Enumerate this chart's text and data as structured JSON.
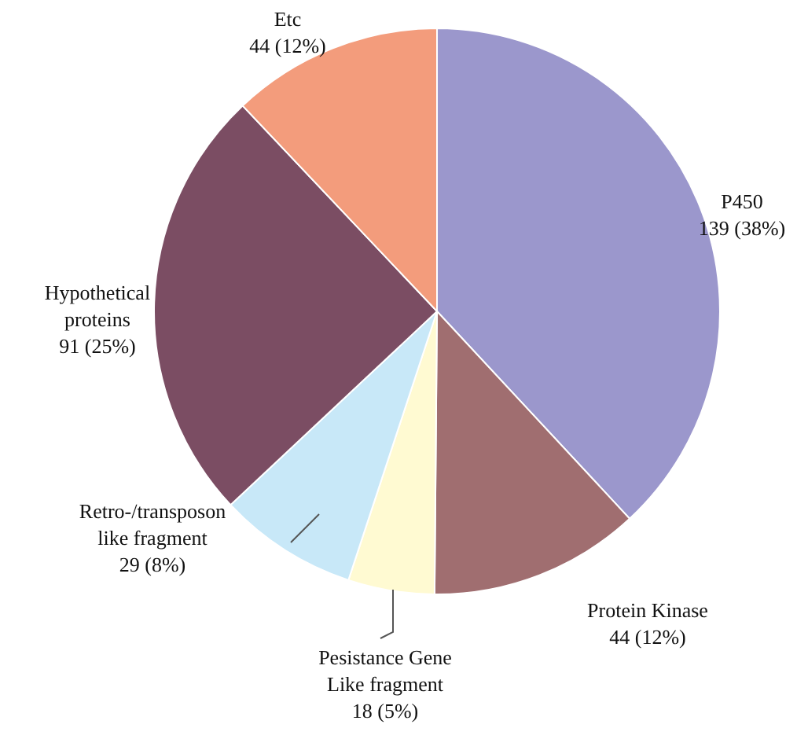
{
  "chart_data": {
    "type": "pie",
    "categories": [
      "P450",
      "Protein Kinase",
      "Pesistance Gene\nLike fragment",
      "Retro-/transposon\nlike fragment",
      "Hypothetical\nproteins",
      "Etc"
    ],
    "values": [
      139,
      44,
      18,
      29,
      91,
      44
    ],
    "value_labels": [
      "139 (38%)",
      "44 (12%)",
      "18 (5%)",
      "29 (8%)",
      "91 (25%)",
      "44 (12%)"
    ],
    "colors": [
      "#9b97cc",
      "#a06e70",
      "#fffad2",
      "#c8e8f8",
      "#7b4d63",
      "#f39c7c"
    ]
  }
}
